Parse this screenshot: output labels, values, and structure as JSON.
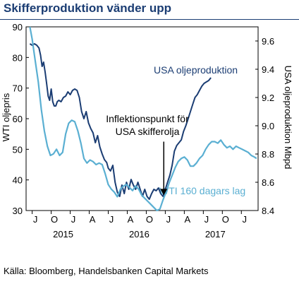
{
  "header": {
    "title": "Skifferproduktion vänder upp"
  },
  "footer": {
    "source": "Källa: Bloomberg, Handelsbanken Capital Markets"
  },
  "chart_data": {
    "type": "line",
    "title": "Skifferproduktion vänder upp",
    "ylabel_left": "WTI oljepris",
    "ylabel_right": "USA oljeproduktion Mbpd",
    "ylim_left": [
      30,
      90
    ],
    "ylim_right": [
      8.4,
      9.7
    ],
    "yticks_left": [
      "90",
      "80",
      "70",
      "60",
      "50",
      "40",
      "30"
    ],
    "yticks_right": [
      "9.6",
      "9.4",
      "9.2",
      "9.0",
      "8.8",
      "8.6",
      "8.4"
    ],
    "x_month_labels": [
      "J",
      "O",
      "J",
      "A",
      "J",
      "A",
      "O",
      "J",
      "A",
      "J",
      "O",
      "J"
    ],
    "x_year_labels": [
      "2015",
      "2016",
      "2017"
    ],
    "xlim": [
      2014.92,
      2017.97
    ],
    "grid": false,
    "annotation": {
      "text_line1": "Inflektionspunkt för",
      "text_line2": "USA skifferolja",
      "x": 2016.73,
      "arrow_from_y": 52.5,
      "arrow_to_y": 35
    },
    "series": [
      {
        "name": "USA oljeproduktion",
        "axis": "right",
        "color": "#1b3d73",
        "x": [
          2014.97,
          2015.0,
          2015.03,
          2015.06,
          2015.09,
          2015.11,
          2015.13,
          2015.15,
          2015.17,
          2015.19,
          2015.21,
          2015.23,
          2015.25,
          2015.27,
          2015.29,
          2015.31,
          2015.33,
          2015.35,
          2015.38,
          2015.41,
          2015.44,
          2015.47,
          2015.5,
          2015.53,
          2015.56,
          2015.59,
          2015.62,
          2015.65,
          2015.68,
          2015.71,
          2015.74,
          2015.77,
          2015.8,
          2015.83,
          2015.86,
          2015.89,
          2015.92,
          2015.95,
          2015.98,
          2016.0,
          2016.03,
          2016.06,
          2016.09,
          2016.12,
          2016.15,
          2016.18,
          2016.21,
          2016.24,
          2016.27,
          2016.3,
          2016.33,
          2016.36,
          2016.39,
          2016.42,
          2016.45,
          2016.48,
          2016.51,
          2016.54,
          2016.57,
          2016.6,
          2016.63,
          2016.66,
          2016.69,
          2016.72,
          2016.75,
          2016.78,
          2016.81,
          2016.84,
          2016.87,
          2016.9,
          2016.93,
          2016.96,
          2016.99,
          2017.02,
          2017.05,
          2017.08,
          2017.11,
          2017.14,
          2017.17,
          2017.2,
          2017.23,
          2017.26,
          2017.29,
          2017.32,
          2017.35
        ],
        "values": [
          9.58,
          9.57,
          9.58,
          9.57,
          9.55,
          9.5,
          9.42,
          9.45,
          9.38,
          9.3,
          9.21,
          9.18,
          9.26,
          9.17,
          9.14,
          9.14,
          9.17,
          9.18,
          9.17,
          9.2,
          9.21,
          9.24,
          9.22,
          9.25,
          9.26,
          9.25,
          9.2,
          9.1,
          9.05,
          9.1,
          9.02,
          8.98,
          8.95,
          8.88,
          8.93,
          8.85,
          8.8,
          8.76,
          8.74,
          8.7,
          8.68,
          8.72,
          8.6,
          8.53,
          8.5,
          8.58,
          8.52,
          8.6,
          8.55,
          8.62,
          8.58,
          8.55,
          8.6,
          8.55,
          8.5,
          8.55,
          8.5,
          8.48,
          8.52,
          8.55,
          8.54,
          8.56,
          8.52,
          8.5,
          8.55,
          8.6,
          8.65,
          8.72,
          8.82,
          8.86,
          8.88,
          8.9,
          8.96,
          9.0,
          9.05,
          9.1,
          9.15,
          9.2,
          9.22,
          9.25,
          9.28,
          9.3,
          9.31,
          9.32,
          9.34
        ]
      },
      {
        "name": "WTI 160 dagars lag",
        "axis": "left",
        "color": "#5aafd2",
        "x": [
          2014.97,
          2015.0,
          2015.04,
          2015.08,
          2015.12,
          2015.16,
          2015.2,
          2015.24,
          2015.28,
          2015.32,
          2015.36,
          2015.4,
          2015.44,
          2015.48,
          2015.52,
          2015.56,
          2015.6,
          2015.64,
          2015.68,
          2015.72,
          2015.76,
          2015.8,
          2015.84,
          2015.88,
          2015.92,
          2015.96,
          2016.0,
          2016.04,
          2016.08,
          2016.12,
          2016.16,
          2016.2,
          2016.24,
          2016.28,
          2016.32,
          2016.36,
          2016.4,
          2016.44,
          2016.48,
          2016.52,
          2016.56,
          2016.6,
          2016.64,
          2016.68,
          2016.72,
          2016.76,
          2016.8,
          2016.84,
          2016.88,
          2016.92,
          2016.96,
          2017.0,
          2017.04,
          2017.08,
          2017.12,
          2017.16,
          2017.2,
          2017.24,
          2017.28,
          2017.32,
          2017.36,
          2017.4,
          2017.44,
          2017.48,
          2017.52,
          2017.56,
          2017.6,
          2017.64,
          2017.68,
          2017.72,
          2017.76,
          2017.8,
          2017.84,
          2017.88,
          2017.92,
          2017.95
        ],
        "values": [
          90,
          86,
          79,
          72,
          63,
          56,
          51,
          48,
          48.5,
          50,
          48,
          49,
          55,
          58.5,
          59.5,
          59,
          56,
          52,
          47,
          45.5,
          46.5,
          46,
          45,
          45.5,
          45,
          42,
          38.5,
          37,
          36,
          34.5,
          37,
          38,
          38.5,
          37.5,
          36.5,
          38,
          37,
          35,
          34,
          33,
          32,
          31,
          30,
          30.5,
          33.5,
          36,
          39,
          41.5,
          44,
          46,
          47,
          47.5,
          46.5,
          44.5,
          44.5,
          45.5,
          47,
          48,
          50,
          51.5,
          52.5,
          52.5,
          52,
          53,
          51.5,
          50.5,
          51,
          50,
          51,
          50.5,
          50,
          49.5,
          49,
          48,
          47.5,
          47
        ]
      }
    ]
  }
}
